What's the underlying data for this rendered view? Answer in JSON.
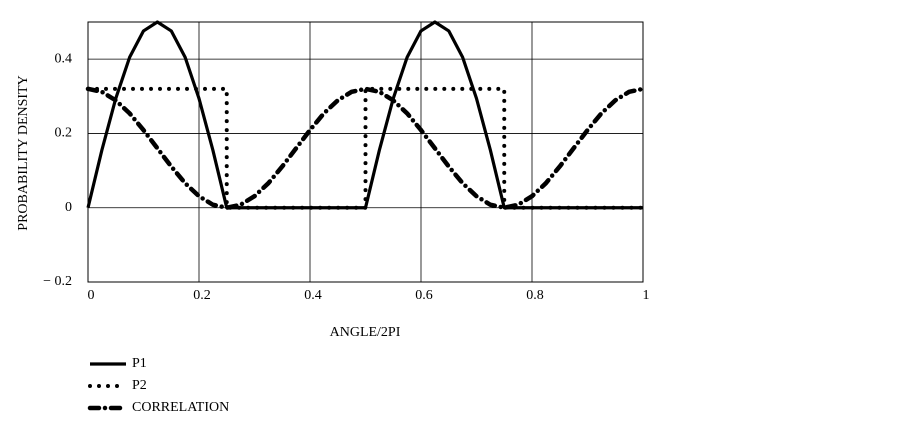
{
  "chart_data": {
    "type": "line",
    "x_label": "ANGLE/2PI",
    "y_label": "PROBABILITY DENSITY",
    "x": [
      0,
      0.025,
      0.05,
      0.075,
      0.1,
      0.125,
      0.15,
      0.175,
      0.2,
      0.225,
      0.25,
      0.275,
      0.3,
      0.325,
      0.35,
      0.375,
      0.4,
      0.425,
      0.45,
      0.475,
      0.5,
      0.525,
      0.55,
      0.575,
      0.6,
      0.625,
      0.65,
      0.675,
      0.7,
      0.725,
      0.75,
      0.775,
      0.8,
      0.825,
      0.85,
      0.875,
      0.9,
      0.925,
      0.95,
      0.975,
      1
    ],
    "series": [
      {
        "name": "P1",
        "color": "#000000",
        "dash": "solid",
        "values": [
          0,
          0.155,
          0.294,
          0.405,
          0.476,
          0.5,
          0.476,
          0.405,
          0.294,
          0.155,
          0,
          0,
          0,
          0,
          0,
          0,
          0,
          0,
          0,
          0,
          0,
          0.155,
          0.294,
          0.405,
          0.476,
          0.5,
          0.476,
          0.405,
          0.294,
          0.155,
          0,
          0,
          0,
          0,
          0,
          0,
          0,
          0,
          0,
          0,
          0
        ]
      },
      {
        "name": "P2",
        "color": "#000000",
        "dash": "dotted",
        "x": [
          0,
          0.25,
          0.25,
          0.5,
          0.5,
          0.75,
          0.75,
          1
        ],
        "values": [
          0.32,
          0.32,
          0,
          0,
          0.32,
          0.32,
          0,
          0
        ]
      },
      {
        "name": "CORRELATION",
        "color": "#000000",
        "dash": "dashdot",
        "values": [
          0.32,
          0.312,
          0.289,
          0.254,
          0.209,
          0.16,
          0.111,
          0.066,
          0.031,
          0.008,
          0,
          0.008,
          0.031,
          0.066,
          0.111,
          0.16,
          0.209,
          0.254,
          0.289,
          0.312,
          0.32,
          0.312,
          0.289,
          0.254,
          0.209,
          0.16,
          0.111,
          0.066,
          0.031,
          0.008,
          0,
          0.008,
          0.031,
          0.066,
          0.111,
          0.16,
          0.209,
          0.254,
          0.289,
          0.312,
          0.32
        ]
      }
    ],
    "xlim": [
      0,
      1
    ],
    "xticks": [
      0,
      0.2,
      0.4,
      0.6,
      0.8,
      1
    ],
    "ylim": [
      -0.2,
      0.5
    ],
    "yticks": [
      {
        "value": -0.2,
        "label": "− 0.2"
      },
      0,
      0.2,
      0.4
    ],
    "grid": true,
    "legend": "bottom-left"
  }
}
